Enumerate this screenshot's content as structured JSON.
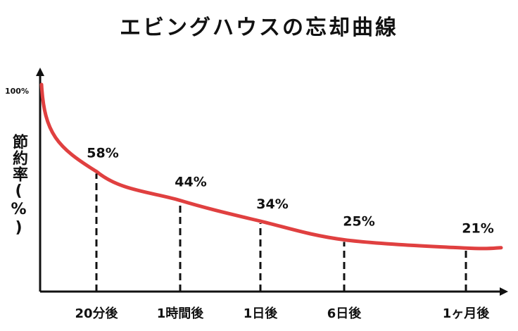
{
  "chart_data": {
    "type": "line",
    "title": "エビングハウスの忘却曲線",
    "ylabel": "節約率(%)",
    "xlabel": "",
    "y_max_label": "100%",
    "ylim": [
      0,
      100
    ],
    "grid": false,
    "legend": "none",
    "line_color": "#e04040",
    "categories": [
      "20分後",
      "1時間後",
      "1日後",
      "6日後",
      "1ヶ月後"
    ],
    "series": [
      {
        "values": [
          58,
          44,
          34,
          25,
          21
        ],
        "labels": [
          "58%",
          "44%",
          "34%",
          "25%",
          "21%"
        ]
      }
    ]
  }
}
